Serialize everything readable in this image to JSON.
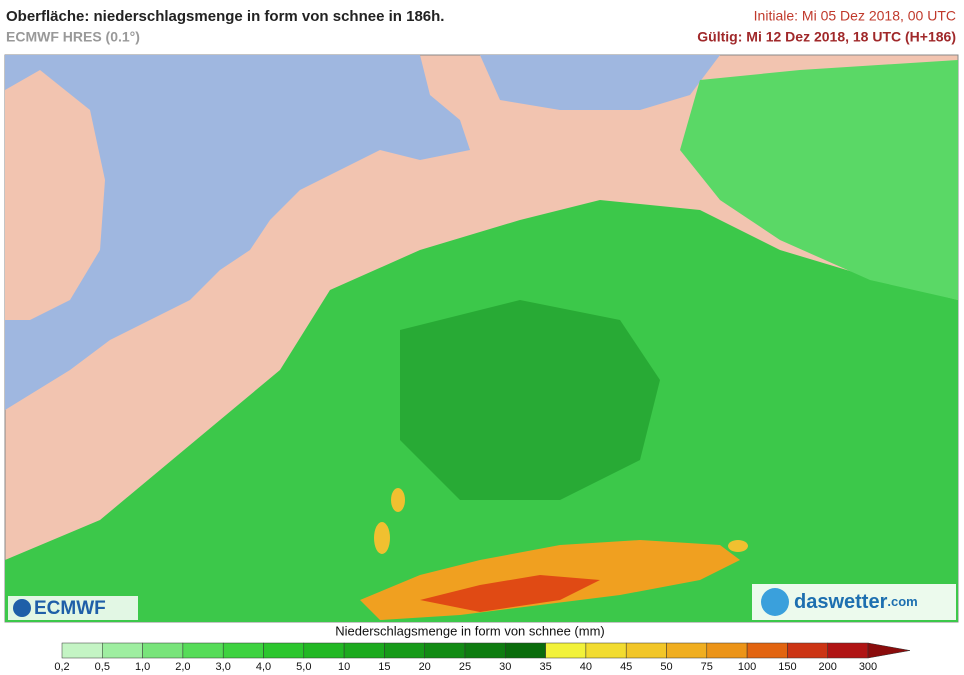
{
  "header": {
    "title": "Oberfläche: niederschlagsmenge in form von schnee in 186h.",
    "model": "ECMWF HRES (0.1°)",
    "initial": "Initiale: Mi 05 Dez 2018, 00 UTC",
    "valid": "Gültig: Mi 12 Dez 2018, 18 UTC (H+186)"
  },
  "logos": {
    "left": "ECMWF",
    "right": "daswetter",
    "right_suffix": ".com"
  },
  "legend": {
    "title": "Niederschlagsmenge in form von schnee (mm)",
    "labels": [
      "0,2",
      "0,5",
      "1,0",
      "2,0",
      "3,0",
      "4,0",
      "5,0",
      "10",
      "15",
      "20",
      "25",
      "30",
      "35",
      "40",
      "45",
      "50",
      "75",
      "100",
      "150",
      "200",
      "300"
    ],
    "colors": [
      "#c4f4c4",
      "#9eeea0",
      "#78e47a",
      "#56dc58",
      "#3ed240",
      "#2cc62e",
      "#22b824",
      "#1caa1e",
      "#179a19",
      "#128b14",
      "#0e7c10",
      "#0a6c0c",
      "#f2f23a",
      "#f2dc30",
      "#f2c628",
      "#f0ae20",
      "#ec9418",
      "#e26410",
      "#cc3414",
      "#b01414"
    ],
    "arrow_color": "#8a0c0c"
  }
}
